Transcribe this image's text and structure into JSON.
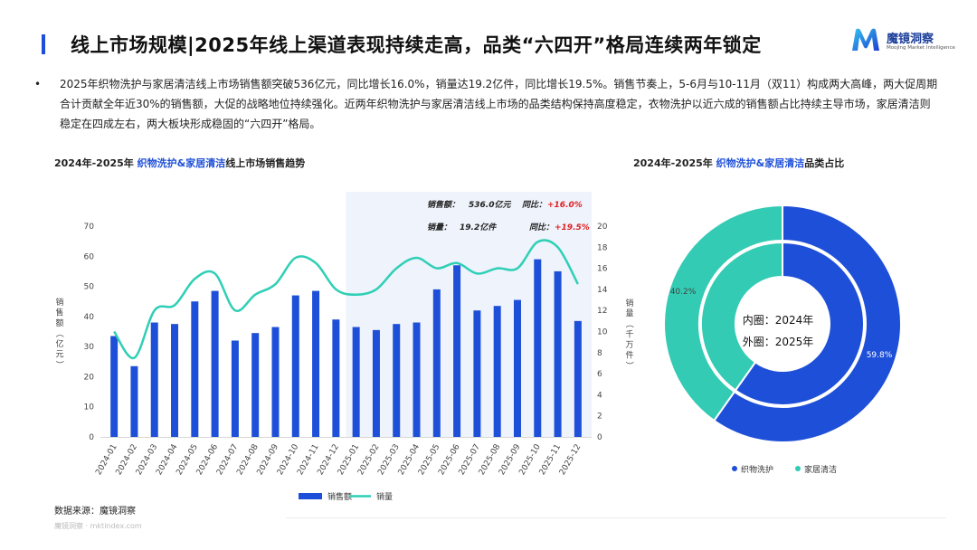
{
  "header": {
    "title": "线上市场规模|2025年线上渠道表现持续走高，品类“六四开”格局连续两年锁定",
    "brand_name": "魔镜洞察",
    "brand_sub": "Moojing Market Intelligence"
  },
  "summary": {
    "bullet": "•",
    "text": "2025年织物洗护与家居清洁线上市场销售额突破536亿元，同比增长16.0%，销量达19.2亿件，同比增长19.5%。销售节奏上，5-6月与10-11月（双11）构成两大高峰，两大促周期合计贡献全年近30%的销售额，大促的战略地位持续强化。近两年织物洗护与家居清洁线上市场的品类结构保持高度稳定，衣物洗护以近六成的销售额占比持续主导市场，家居清洁则稳定在四成左右，两大板块形成稳固的“六四开”格局。"
  },
  "left_chart": {
    "title_prefix": "2024年-2025年 ",
    "title_highlight": "织物洗护&家居清洁",
    "title_suffix": "线上市场销售趋势"
  },
  "right_chart": {
    "title_prefix": "2024年-2025年 ",
    "title_highlight": "织物洗护&家居清洁",
    "title_suffix": "品类占比"
  },
  "source": "数据来源：魔镜洞察",
  "watermark": "魔镜洞察 · mktindex.com",
  "colors": {
    "bar": "#1e4fd8",
    "line": "#2fcfb6",
    "highlight_bg": "#eef3fc",
    "accent": "#1e4fd8",
    "teal": "#33cbb3",
    "red": "#e02020"
  },
  "chart_data": [
    {
      "type": "bar",
      "combo": "bar+line",
      "categories": [
        "2024-01",
        "2024-02",
        "2024-03",
        "2024-04",
        "2024-05",
        "2024-06",
        "2024-07",
        "2024-08",
        "2024-09",
        "2024-10",
        "2024-11",
        "2024-12",
        "2025-01",
        "2025-02",
        "2025-03",
        "2025-04",
        "2025-05",
        "2025-06",
        "2025-07",
        "2025-08",
        "2025-09",
        "2025-10",
        "2025-11",
        "2025-12"
      ],
      "series": [
        {
          "name": "销售额",
          "type": "bar",
          "axis": "left",
          "values": [
            33.5,
            23.5,
            38,
            37.5,
            45,
            48.5,
            32,
            34.5,
            36.5,
            47,
            48.5,
            39,
            36.5,
            35.5,
            37.5,
            38,
            49,
            57,
            42,
            43.5,
            45.5,
            59,
            55,
            38.5
          ]
        },
        {
          "name": "销量",
          "type": "line",
          "axis": "right",
          "values": [
            10,
            7.5,
            12,
            12.5,
            15,
            15.5,
            12,
            13.5,
            14.5,
            17,
            16.5,
            14,
            13.5,
            14,
            16,
            17,
            16,
            16.5,
            15.5,
            16,
            16,
            18.5,
            18,
            14.5
          ]
        }
      ],
      "ylabel": "销售额（亿元）",
      "y2label": "销量（千万件）",
      "ylim": [
        0,
        70
      ],
      "y_ticks": [
        0,
        10,
        20,
        30,
        40,
        50,
        60,
        70
      ],
      "y2lim": [
        0,
        20
      ],
      "y2_ticks": [
        0,
        2,
        4,
        6,
        8,
        10,
        12,
        14,
        16,
        18,
        20
      ],
      "grid": false,
      "legend": "bottom",
      "highlight_range": [
        "2025-01",
        "2025-12"
      ],
      "annotations": [
        {
          "label": "销售额：",
          "value": "536.0亿元",
          "yoy_label": "同比：",
          "yoy": "+16.0%"
        },
        {
          "label": "销量：",
          "value": "19.2亿件",
          "yoy_label": "同比：",
          "yoy": "+19.5%"
        }
      ]
    },
    {
      "type": "pie",
      "variant": "nested-donut",
      "categories": [
        "织物洗护",
        "家居清洁"
      ],
      "series": [
        {
          "name": "2024年",
          "ring": "inner",
          "values": [
            59.8,
            40.2
          ]
        },
        {
          "name": "2025年",
          "ring": "outer",
          "values": [
            59.8,
            40.2
          ]
        }
      ],
      "data_labels": [
        "59.8%",
        "40.2%"
      ],
      "center_lines": [
        "内圈：2024年",
        "外圈：2025年"
      ],
      "legend": "bottom"
    }
  ]
}
